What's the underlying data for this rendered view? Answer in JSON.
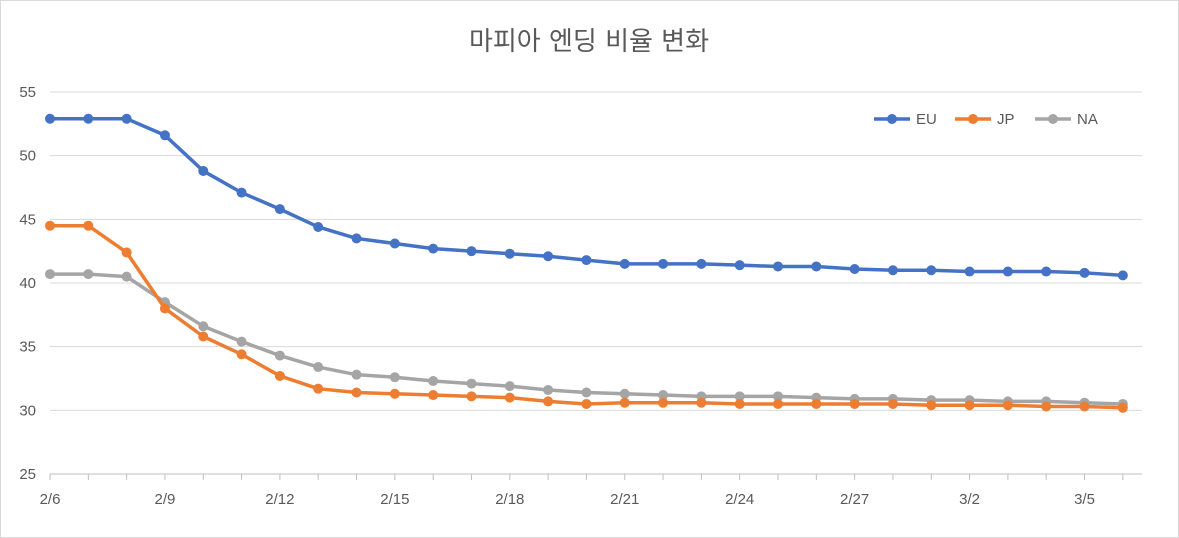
{
  "chart_data": {
    "type": "line",
    "title": "마피아 엔딩 비율 변화",
    "xlabel": "",
    "ylabel": "",
    "ylim": [
      25,
      55
    ],
    "yticks": [
      "25",
      "30",
      "35",
      "40",
      "45",
      "50",
      "55"
    ],
    "x": [
      "2/6",
      "2/7",
      "2/8",
      "2/9",
      "2/10",
      "2/11",
      "2/12",
      "2/13",
      "2/14",
      "2/15",
      "2/16",
      "2/17",
      "2/18",
      "2/19",
      "2/20",
      "2/21",
      "2/22",
      "2/23",
      "2/24",
      "2/25",
      "2/26",
      "2/27",
      "2/28",
      "3/1",
      "3/2",
      "3/3",
      "3/4",
      "3/5",
      "3/6"
    ],
    "xtick_labels": [
      "2/6",
      "2/9",
      "2/12",
      "2/15",
      "2/18",
      "2/21",
      "2/24",
      "2/27",
      "3/2",
      "3/5"
    ],
    "xtick_indices": [
      0,
      3,
      6,
      9,
      12,
      15,
      18,
      21,
      24,
      27
    ],
    "grid": true,
    "legend_position": "top-right",
    "series": [
      {
        "name": "EU",
        "color": "#4472c4",
        "values": [
          52.9,
          52.9,
          52.9,
          51.6,
          48.8,
          47.1,
          45.8,
          44.4,
          43.5,
          43.1,
          42.7,
          42.5,
          42.3,
          42.1,
          41.8,
          41.5,
          41.5,
          41.5,
          41.4,
          41.3,
          41.3,
          41.1,
          41.0,
          41.0,
          40.9,
          40.9,
          40.9,
          40.8,
          40.6
        ]
      },
      {
        "name": "JP",
        "color": "#ed7d31",
        "values": [
          44.5,
          44.5,
          42.4,
          38.0,
          35.8,
          34.4,
          32.7,
          31.7,
          31.4,
          31.3,
          31.2,
          31.1,
          31.0,
          30.7,
          30.5,
          30.6,
          30.6,
          30.6,
          30.5,
          30.5,
          30.5,
          30.5,
          30.5,
          30.4,
          30.4,
          30.4,
          30.3,
          30.3,
          30.2
        ]
      },
      {
        "name": "NA",
        "color": "#a5a5a5",
        "values": [
          40.7,
          40.7,
          40.5,
          38.5,
          36.6,
          35.4,
          34.3,
          33.4,
          32.8,
          32.6,
          32.3,
          32.1,
          31.9,
          31.6,
          31.4,
          31.3,
          31.2,
          31.1,
          31.1,
          31.1,
          31.0,
          30.9,
          30.9,
          30.8,
          30.8,
          30.7,
          30.7,
          30.6,
          30.5
        ]
      }
    ]
  }
}
